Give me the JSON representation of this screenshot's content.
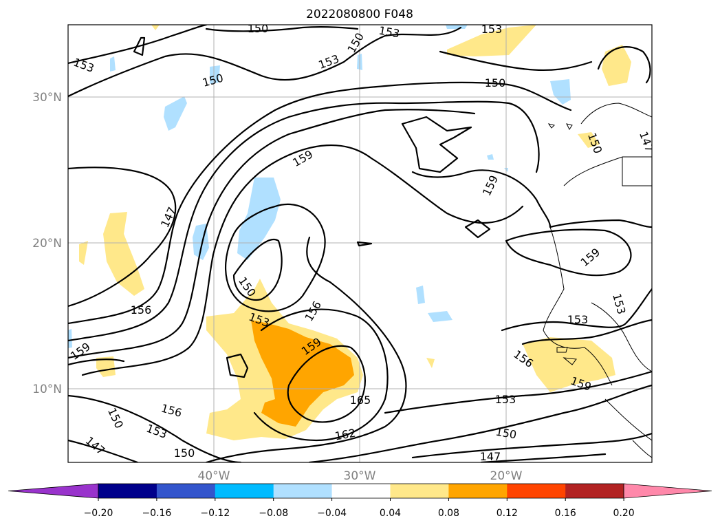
{
  "title": "2022080800 F048",
  "map": {
    "lat_labels": [
      "30°N",
      "20°N",
      "10°N"
    ],
    "lon_labels": [
      "40°W",
      "30°W",
      "20°W"
    ],
    "contour_labels": [
      "150",
      "153",
      "150",
      "153",
      "150",
      "153",
      "150",
      "159",
      "147",
      "153",
      "150",
      "153",
      "156",
      "159",
      "159",
      "165",
      "162",
      "156",
      "153",
      "150",
      "147",
      "150",
      "153",
      "156",
      "159",
      "159",
      "153",
      "153",
      "150",
      "147",
      "159"
    ]
  },
  "colorbar": {
    "ticks": [
      "−0.20",
      "−0.16",
      "−0.12",
      "−0.08",
      "−0.04",
      "0.04",
      "0.08",
      "0.12",
      "0.16",
      "0.20"
    ],
    "colors": [
      "#9933cc",
      "#00008b",
      "#3355cc",
      "#00bbff",
      "#b0e0ff",
      "#ffffff",
      "#ffe88a",
      "#ffa500",
      "#ff4400",
      "#b22222",
      "#ff88aa"
    ]
  }
}
